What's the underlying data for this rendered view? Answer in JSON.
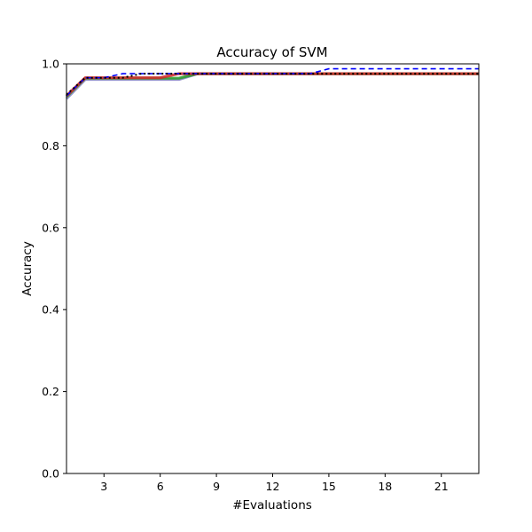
{
  "chart_data": {
    "type": "line",
    "title": "Accuracy of SVM",
    "xlabel": "#Evaluations",
    "ylabel": "Accuracy",
    "xlim": [
      1,
      23
    ],
    "ylim": [
      0.0,
      1.0
    ],
    "xticks": [
      3,
      6,
      9,
      12,
      15,
      18,
      21
    ],
    "xtick_labels": [
      "3",
      "6",
      "9",
      "12",
      "15",
      "18",
      "21"
    ],
    "yticks": [
      0.0,
      0.2,
      0.4,
      0.6,
      0.8,
      1.0
    ],
    "ytick_labels": [
      "0.0",
      "0.2",
      "0.4",
      "0.6",
      "0.8",
      "1.0"
    ],
    "grid": false,
    "x": [
      1,
      2,
      3,
      4,
      5,
      6,
      7,
      8,
      9,
      10,
      11,
      12,
      13,
      14,
      15,
      16,
      17,
      18,
      19,
      20,
      21,
      22,
      23
    ],
    "series": [
      {
        "color": "#7f7fbf",
        "style": "solid",
        "values": [
          0.915,
          0.962,
          0.962,
          0.962,
          0.962,
          0.962,
          0.962,
          0.976,
          0.976,
          0.976,
          0.976,
          0.976,
          0.976,
          0.976,
          0.976,
          0.976,
          0.976,
          0.976,
          0.976,
          0.976,
          0.976,
          0.976,
          0.976
        ]
      },
      {
        "color": "#2ca02c",
        "style": "solid",
        "values": [
          0.92,
          0.965,
          0.965,
          0.965,
          0.965,
          0.965,
          0.965,
          0.976,
          0.976,
          0.976,
          0.976,
          0.976,
          0.976,
          0.976,
          0.976,
          0.976,
          0.976,
          0.976,
          0.976,
          0.976,
          0.976,
          0.976,
          0.976
        ]
      },
      {
        "color": "#d62728",
        "style": "solid",
        "values": [
          0.922,
          0.966,
          0.966,
          0.966,
          0.966,
          0.966,
          0.976,
          0.976,
          0.976,
          0.976,
          0.976,
          0.976,
          0.976,
          0.976,
          0.976,
          0.976,
          0.976,
          0.976,
          0.976,
          0.976,
          0.976,
          0.976,
          0.976
        ]
      },
      {
        "color": "#0000ff",
        "style": "dashed",
        "values": [
          0.922,
          0.966,
          0.966,
          0.976,
          0.976,
          0.976,
          0.976,
          0.976,
          0.976,
          0.976,
          0.976,
          0.976,
          0.976,
          0.976,
          0.988,
          0.988,
          0.988,
          0.988,
          0.988,
          0.988,
          0.988,
          0.988,
          0.988
        ]
      },
      {
        "color": "#000000",
        "style": "dotted",
        "values": [
          0.925,
          0.966,
          0.966,
          0.966,
          0.976,
          0.976,
          0.976,
          0.976,
          0.976,
          0.976,
          0.976,
          0.976,
          0.976,
          0.976,
          0.976,
          0.976,
          0.976,
          0.976,
          0.976,
          0.976,
          0.976,
          0.976,
          0.976
        ]
      }
    ]
  }
}
